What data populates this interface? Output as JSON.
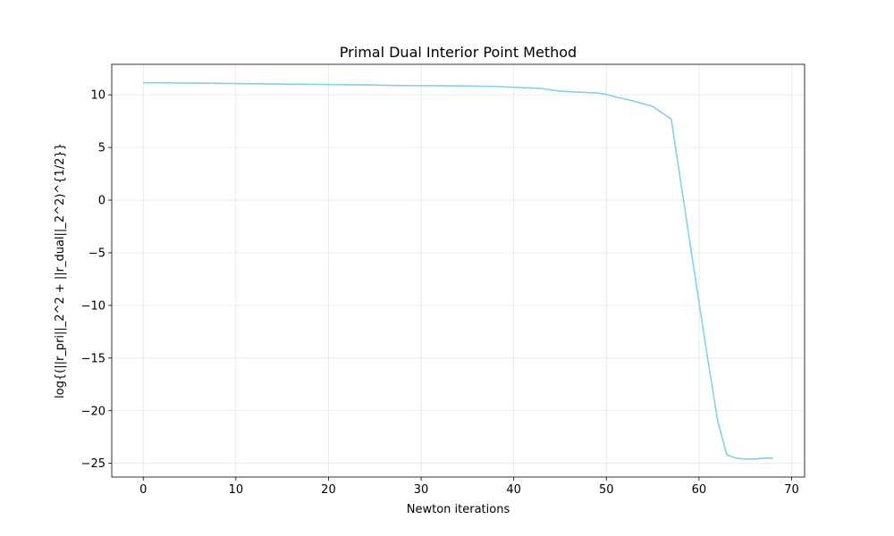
{
  "chart_data": {
    "type": "line",
    "title": "Primal Dual Interior Point Method",
    "xlabel": "Newton iterations",
    "ylabel": "log{(||r_pri||_2^2 + ||r_dual||_2^2)^{1/2}}",
    "xlim": [
      -3.4,
      71.4
    ],
    "ylim": [
      -26.3,
      12.9
    ],
    "xticks": [
      0,
      10,
      20,
      30,
      40,
      50,
      60,
      70
    ],
    "yticks": [
      -25,
      -20,
      -15,
      -10,
      -5,
      0,
      5,
      10
    ],
    "grid": true,
    "series": [
      {
        "color": "#87ceeb",
        "x": [
          0,
          5,
          10,
          15,
          20,
          25,
          27,
          30,
          34,
          38,
          40,
          43,
          45,
          47,
          49,
          50,
          51,
          53,
          55,
          57,
          58,
          59,
          60,
          61,
          62,
          63,
          64,
          65,
          66,
          67,
          68
        ],
        "values": [
          11.15,
          11.12,
          11.07,
          11.03,
          10.98,
          10.93,
          10.89,
          10.88,
          10.86,
          10.8,
          10.72,
          10.6,
          10.35,
          10.25,
          10.18,
          10.05,
          9.8,
          9.4,
          8.9,
          7.7,
          1.9,
          -3.9,
          -9.7,
          -15.4,
          -20.9,
          -24.2,
          -24.5,
          -24.6,
          -24.6,
          -24.5,
          -24.5
        ]
      }
    ]
  }
}
